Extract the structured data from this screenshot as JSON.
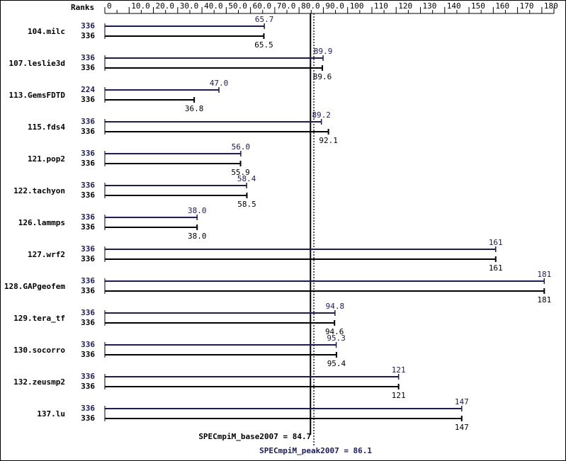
{
  "chart_data": {
    "type": "bar",
    "orientation": "horizontal",
    "title": "",
    "axis_title": "Ranks",
    "xlim": [
      0,
      185
    ],
    "ticks": [
      0,
      10,
      20,
      30,
      40,
      50,
      60,
      70,
      80,
      90,
      100,
      110,
      120,
      130,
      140,
      150,
      160,
      170,
      180
    ],
    "tick_labels": [
      "0",
      "10.0",
      "20.0",
      "30.0",
      "40.0",
      "50.0",
      "60.0",
      "70.0",
      "80.0",
      "90.0",
      "100",
      "110",
      "120",
      "130",
      "140",
      "150",
      "160",
      "170",
      "180"
    ],
    "colors": {
      "peak": "#191970",
      "base": "#000000",
      "grid": "#000000"
    },
    "benchmarks": [
      {
        "name": "104.milc",
        "peak_ranks": "336",
        "base_ranks": "336",
        "peak": 65.7,
        "base": 65.5,
        "peak_label": "65.7",
        "base_label": "65.5"
      },
      {
        "name": "107.leslie3d",
        "peak_ranks": "336",
        "base_ranks": "336",
        "peak": 89.9,
        "base": 89.6,
        "peak_label": "89.9",
        "base_label": "89.6"
      },
      {
        "name": "113.GemsFDTD",
        "peak_ranks": "224",
        "base_ranks": "336",
        "peak": 47.0,
        "base": 36.8,
        "peak_label": "47.0",
        "base_label": "36.8"
      },
      {
        "name": "115.fds4",
        "peak_ranks": "336",
        "base_ranks": "336",
        "peak": 89.2,
        "base": 92.1,
        "peak_label": "89.2",
        "base_label": "92.1"
      },
      {
        "name": "121.pop2",
        "peak_ranks": "336",
        "base_ranks": "336",
        "peak": 56.0,
        "base": 55.9,
        "peak_label": "56.0",
        "base_label": "55.9"
      },
      {
        "name": "122.tachyon",
        "peak_ranks": "336",
        "base_ranks": "336",
        "peak": 58.4,
        "base": 58.5,
        "peak_label": "58.4",
        "base_label": "58.5"
      },
      {
        "name": "126.lammps",
        "peak_ranks": "336",
        "base_ranks": "336",
        "peak": 38.0,
        "base": 38.0,
        "peak_label": "38.0",
        "base_label": "38.0"
      },
      {
        "name": "127.wrf2",
        "peak_ranks": "336",
        "base_ranks": "336",
        "peak": 161,
        "base": 161,
        "peak_label": "161",
        "base_label": "161"
      },
      {
        "name": "128.GAPgeofem",
        "peak_ranks": "336",
        "base_ranks": "336",
        "peak": 181,
        "base": 181,
        "peak_label": "181",
        "base_label": "181"
      },
      {
        "name": "129.tera_tf",
        "peak_ranks": "336",
        "base_ranks": "336",
        "peak": 94.8,
        "base": 94.6,
        "peak_label": "94.8",
        "base_label": "94.6"
      },
      {
        "name": "130.socorro",
        "peak_ranks": "336",
        "base_ranks": "336",
        "peak": 95.3,
        "base": 95.4,
        "peak_label": "95.3",
        "base_label": "95.4"
      },
      {
        "name": "132.zeusmp2",
        "peak_ranks": "336",
        "base_ranks": "336",
        "peak": 121,
        "base": 121,
        "peak_label": "121",
        "base_label": "121"
      },
      {
        "name": "137.lu",
        "peak_ranks": "336",
        "base_ranks": "336",
        "peak": 147,
        "base": 147,
        "peak_label": "147",
        "base_label": "147"
      }
    ],
    "summary": {
      "base_value": 84.7,
      "base_label": "SPECmpiM_base2007 = 84.7",
      "peak_value": 86.1,
      "peak_label": "SPECmpiM_peak2007 = 86.1"
    }
  }
}
